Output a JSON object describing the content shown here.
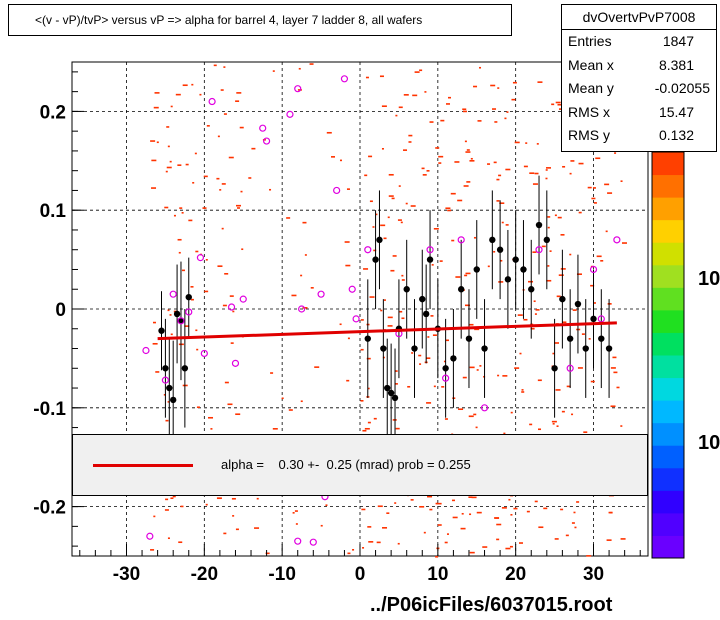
{
  "title": "<(v - vP)/tvP> versus   vP => alpha for barrel 4, layer 7 ladder 8, all wafers",
  "stats": {
    "name": "dvOvertvPvP7008",
    "rows": [
      {
        "k": "Entries",
        "v": "1847"
      },
      {
        "k": "Mean x",
        "v": "8.381"
      },
      {
        "k": "Mean y",
        "v": "-0.02055"
      },
      {
        "k": "RMS x",
        "v": "15.47"
      },
      {
        "k": "RMS y",
        "v": "0.132"
      }
    ]
  },
  "legend_text": "alpha =    0.30 +-  0.25 (mrad) prob = 0.255",
  "footer": "../P06icFiles/6037015.root",
  "palette_labels": [
    "10",
    "10"
  ],
  "colors": {
    "fit": "#e00000",
    "hist": "#ff3300",
    "profile": "#000000",
    "open": "#e000e0"
  },
  "chart_data": {
    "type": "scatter",
    "xlim": [
      -37,
      37
    ],
    "ylim": [
      -0.25,
      0.25
    ],
    "xticks": [
      -30,
      -20,
      -10,
      0,
      10,
      20,
      30
    ],
    "yticks": [
      -0.2,
      -0.1,
      0,
      0.1,
      0.2
    ],
    "xtick_labels": [
      "-30",
      "-20",
      "-10",
      "0",
      "10",
      "20",
      "30"
    ],
    "ytick_labels": [
      "-0.2",
      "-0.1",
      "0",
      "0.1",
      "0.2"
    ],
    "grid": true,
    "fit_line": {
      "x": [
        -26,
        33
      ],
      "y": [
        -0.03,
        -0.014
      ]
    },
    "profile_points": [
      {
        "x": -25.5,
        "y": -0.022,
        "e": 0.04
      },
      {
        "x": -25,
        "y": -0.06,
        "e": 0.05
      },
      {
        "x": -24.5,
        "y": -0.08,
        "e": 0.05
      },
      {
        "x": -24,
        "y": -0.092,
        "e": 0.06
      },
      {
        "x": -23.5,
        "y": -0.005,
        "e": 0.05
      },
      {
        "x": -23,
        "y": -0.012,
        "e": 0.06
      },
      {
        "x": -22.5,
        "y": -0.06,
        "e": 0.06
      },
      {
        "x": -22,
        "y": 0.012,
        "e": 0.04
      },
      {
        "x": 1,
        "y": -0.03,
        "e": 0.06
      },
      {
        "x": 2,
        "y": 0.05,
        "e": 0.05
      },
      {
        "x": 2.5,
        "y": 0.07,
        "e": 0.05
      },
      {
        "x": 3,
        "y": -0.04,
        "e": 0.05
      },
      {
        "x": 3.5,
        "y": -0.08,
        "e": 0.05
      },
      {
        "x": 4,
        "y": -0.085,
        "e": 0.05
      },
      {
        "x": 4.5,
        "y": -0.09,
        "e": 0.05
      },
      {
        "x": 5,
        "y": -0.02,
        "e": 0.05
      },
      {
        "x": 6,
        "y": 0.02,
        "e": 0.05
      },
      {
        "x": 7,
        "y": -0.04,
        "e": 0.05
      },
      {
        "x": 8,
        "y": 0.01,
        "e": 0.05
      },
      {
        "x": 8.5,
        "y": -0.005,
        "e": 0.05
      },
      {
        "x": 9,
        "y": 0.05,
        "e": 0.05
      },
      {
        "x": 10,
        "y": -0.02,
        "e": 0.05
      },
      {
        "x": 11,
        "y": -0.06,
        "e": 0.05
      },
      {
        "x": 12,
        "y": -0.05,
        "e": 0.05
      },
      {
        "x": 13,
        "y": 0.02,
        "e": 0.05
      },
      {
        "x": 14,
        "y": -0.03,
        "e": 0.05
      },
      {
        "x": 15,
        "y": 0.04,
        "e": 0.05
      },
      {
        "x": 16,
        "y": -0.04,
        "e": 0.05
      },
      {
        "x": 17,
        "y": 0.07,
        "e": 0.05
      },
      {
        "x": 18,
        "y": 0.06,
        "e": 0.05
      },
      {
        "x": 19,
        "y": 0.03,
        "e": 0.05
      },
      {
        "x": 20,
        "y": 0.05,
        "e": 0.05
      },
      {
        "x": 21,
        "y": 0.04,
        "e": 0.05
      },
      {
        "x": 22,
        "y": 0.02,
        "e": 0.05
      },
      {
        "x": 23,
        "y": 0.085,
        "e": 0.05
      },
      {
        "x": 24,
        "y": 0.07,
        "e": 0.05
      },
      {
        "x": 25,
        "y": -0.06,
        "e": 0.05
      },
      {
        "x": 26,
        "y": 0.01,
        "e": 0.05
      },
      {
        "x": 27,
        "y": -0.03,
        "e": 0.05
      },
      {
        "x": 28,
        "y": 0.005,
        "e": 0.05
      },
      {
        "x": 29,
        "y": -0.04,
        "e": 0.05
      },
      {
        "x": 30,
        "y": -0.01,
        "e": 0.05
      },
      {
        "x": 31,
        "y": -0.03,
        "e": 0.05
      },
      {
        "x": 32,
        "y": -0.04,
        "e": 0.05
      }
    ],
    "open_points": [
      {
        "x": -27.5,
        "y": -0.042
      },
      {
        "x": -25,
        "y": -0.072
      },
      {
        "x": -24,
        "y": 0.015
      },
      {
        "x": -23,
        "y": -0.012
      },
      {
        "x": -22,
        "y": -0.003
      },
      {
        "x": -20.5,
        "y": 0.052
      },
      {
        "x": -20,
        "y": -0.045
      },
      {
        "x": -19,
        "y": 0.21
      },
      {
        "x": -16.5,
        "y": 0.002
      },
      {
        "x": -16,
        "y": -0.055
      },
      {
        "x": -15,
        "y": 0.01
      },
      {
        "x": -12.5,
        "y": 0.183
      },
      {
        "x": -12,
        "y": 0.17
      },
      {
        "x": -9,
        "y": 0.197
      },
      {
        "x": -8,
        "y": 0.223
      },
      {
        "x": -7.5,
        "y": 0.0
      },
      {
        "x": -5,
        "y": 0.015
      },
      {
        "x": -3,
        "y": 0.12
      },
      {
        "x": -2,
        "y": 0.233
      },
      {
        "x": -1,
        "y": 0.02
      },
      {
        "x": -0.5,
        "y": -0.01
      },
      {
        "x": 1,
        "y": 0.06
      },
      {
        "x": 5,
        "y": -0.025
      },
      {
        "x": 9,
        "y": 0.06
      },
      {
        "x": 11,
        "y": -0.07
      },
      {
        "x": 13,
        "y": 0.07
      },
      {
        "x": 16,
        "y": -0.1
      },
      {
        "x": 23,
        "y": 0.06
      },
      {
        "x": 27,
        "y": -0.06
      },
      {
        "x": 30,
        "y": 0.04
      },
      {
        "x": 31,
        "y": -0.01
      },
      {
        "x": 33,
        "y": 0.07
      },
      {
        "x": -27,
        "y": -0.23
      },
      {
        "x": -8,
        "y": -0.235
      },
      {
        "x": -6,
        "y": -0.236
      },
      {
        "x": -4.5,
        "y": -0.19
      }
    ]
  }
}
